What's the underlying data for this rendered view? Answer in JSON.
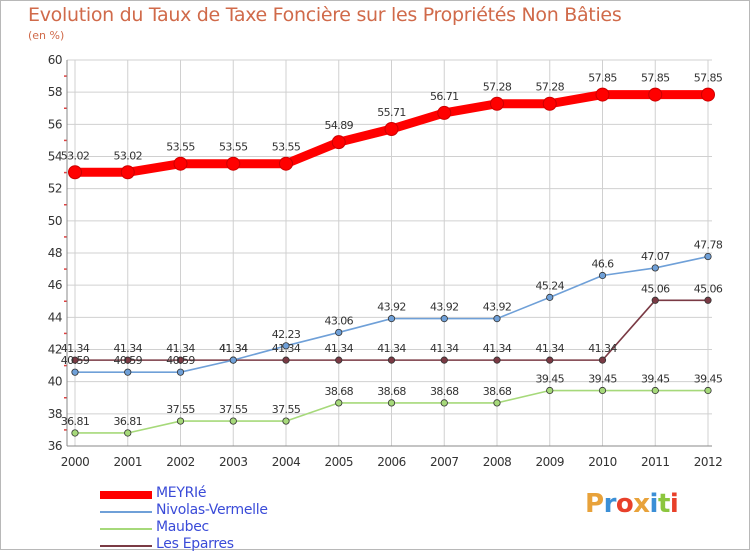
{
  "chart_data": {
    "type": "line",
    "title": "Evolution du Taux de Taxe Foncière sur les Propriétés Non Bâties",
    "ylabel": "(en %)",
    "x": [
      "2000",
      "2001",
      "2002",
      "2003",
      "2004",
      "2005",
      "2006",
      "2007",
      "2008",
      "2009",
      "2010",
      "2011",
      "2012"
    ],
    "ylim": [
      36,
      60
    ],
    "yticks": [
      "36",
      "38",
      "40",
      "42",
      "44",
      "46",
      "48",
      "50",
      "52",
      "54",
      "56",
      "58",
      "60"
    ],
    "grid": true,
    "legend_position": "bottom-left",
    "series": [
      {
        "name": "MEYRIé",
        "color": "#ff0000",
        "values": [
          53.02,
          53.02,
          53.55,
          53.55,
          53.55,
          54.89,
          55.71,
          56.71,
          57.28,
          57.28,
          57.85,
          57.85,
          57.85
        ],
        "labels": [
          "53.02",
          "53.02",
          "53.55",
          "53.55",
          "53.55",
          "54.89",
          "55.71",
          "56.71",
          "57.28",
          "57.28",
          "57.85",
          "57.85",
          "57.85"
        ]
      },
      {
        "name": "Nivolas-Vermelle",
        "color": "#6fa0d8",
        "values": [
          40.59,
          40.59,
          40.59,
          41.34,
          42.23,
          43.06,
          43.92,
          43.92,
          43.92,
          45.24,
          46.6,
          47.07,
          47.78
        ],
        "labels": [
          "40.59",
          "40.59",
          "40.59",
          "41.34",
          "42.23",
          "43.06",
          "43.92",
          "43.92",
          "43.92",
          "45.24",
          "46.6",
          "47.07",
          "47.78"
        ]
      },
      {
        "name": "Maubec",
        "color": "#a6d97a",
        "values": [
          36.81,
          36.81,
          37.55,
          37.55,
          37.55,
          38.68,
          38.68,
          38.68,
          38.68,
          39.45,
          39.45,
          39.45,
          39.45
        ],
        "labels": [
          "36.81",
          "36.81",
          "37.55",
          "37.55",
          "37.55",
          "38.68",
          "38.68",
          "38.68",
          "38.68",
          "39.45",
          "39.45",
          "39.45",
          "39.45"
        ]
      },
      {
        "name": "Les Eparres",
        "color": "#7a3a44",
        "values": [
          41.34,
          41.34,
          41.34,
          41.34,
          41.34,
          41.34,
          41.34,
          41.34,
          41.34,
          41.34,
          41.34,
          45.06,
          45.06
        ],
        "labels": [
          "41.34",
          "41.34",
          "41.34",
          "41.34",
          "41.34",
          "41.34",
          "41.34",
          "41.34",
          "41.34",
          "41.34",
          "41.34",
          "45.06",
          "45.06"
        ]
      }
    ]
  },
  "brand": {
    "logo_text": "Proxiti",
    "logo_colors": [
      "#e8a23a",
      "#3b8fd6",
      "#e8402a",
      "#e8a23a",
      "#3b8fd6",
      "#8cc63e",
      "#e8402a"
    ]
  }
}
